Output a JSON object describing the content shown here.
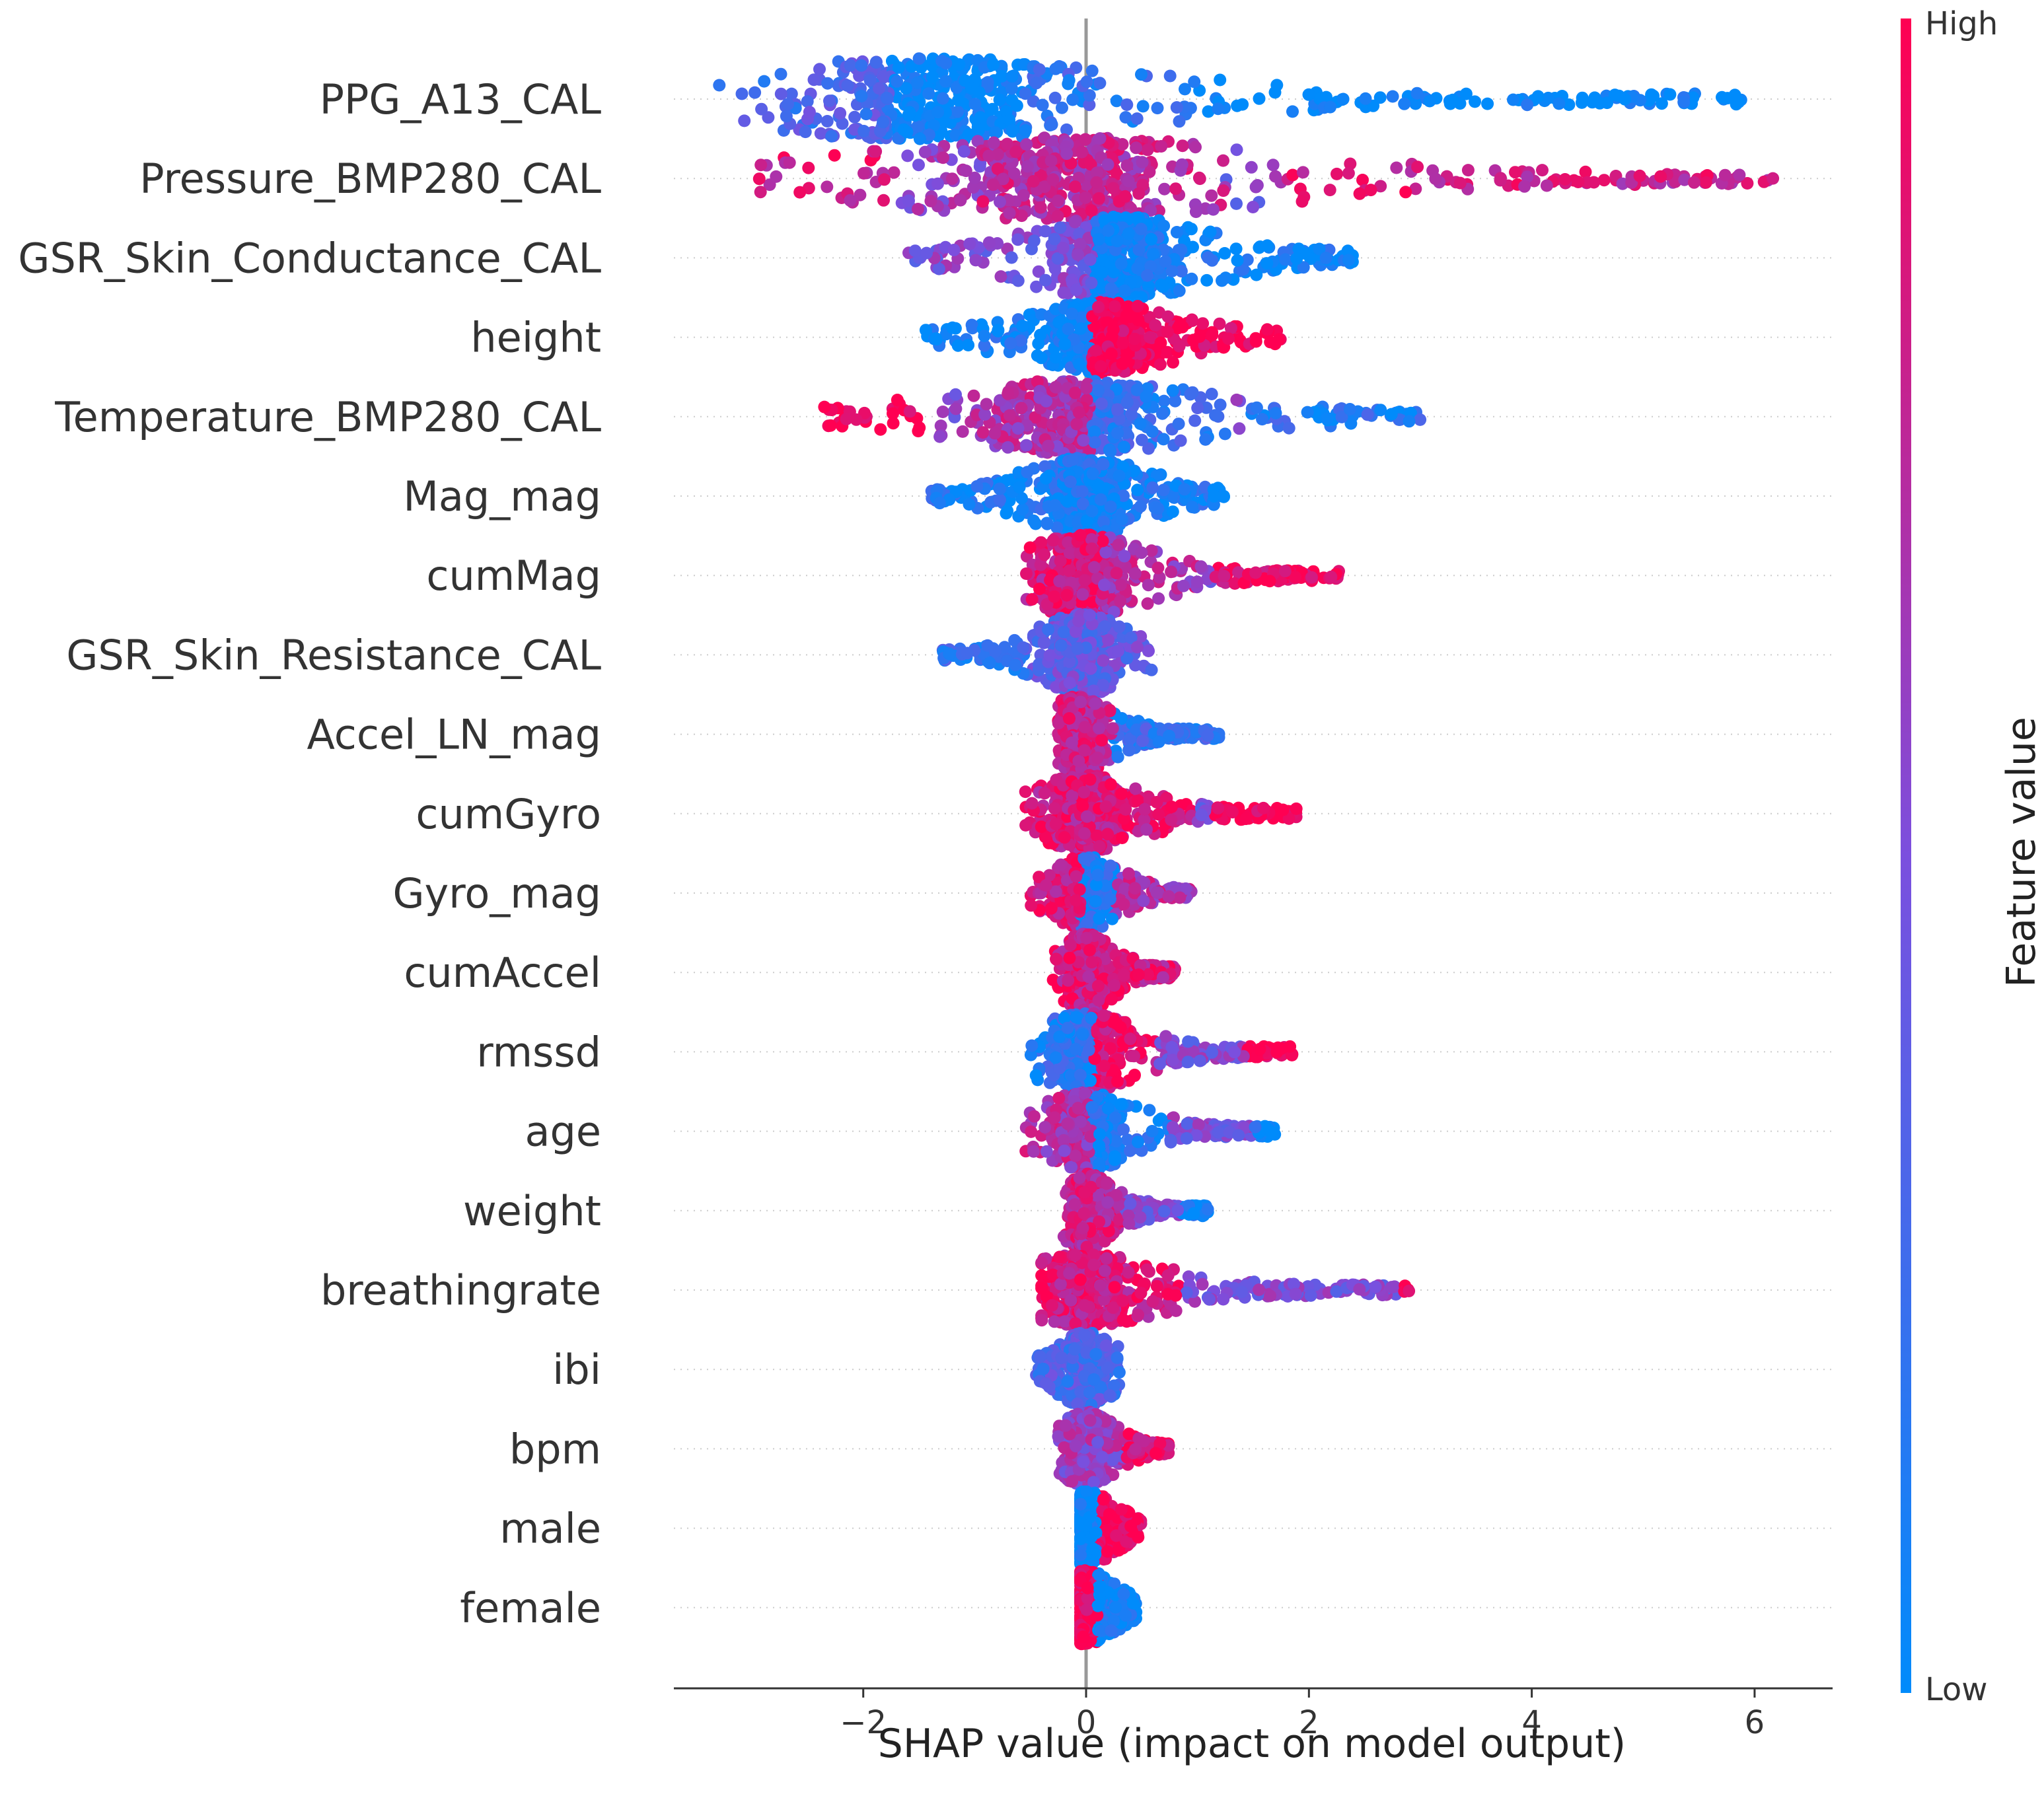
{
  "chart_data": {
    "type": "scatter",
    "subtype": "shap-beeswarm",
    "xlabel": "SHAP value (impact on model output)",
    "xlim": [
      -3.7,
      6.7
    ],
    "xticks": [
      -2,
      0,
      2,
      4,
      6
    ],
    "xtick_labels": [
      "−2",
      "0",
      "2",
      "4",
      "6"
    ],
    "colorbar": {
      "label": "Feature value",
      "high": "High",
      "low": "Low",
      "color_low": "#008bfb",
      "color_mid": "#7b4fde",
      "color_high": "#ff0052"
    },
    "grid": "dotted horizontal row lines",
    "features": [
      {
        "name": "PPG_A13_CAL",
        "min": -3.3,
        "max": 5.9,
        "center": -1.4,
        "max_height": 0.45,
        "segments": [
          [
            -3.3,
            -1.8,
            0.3
          ],
          [
            -1.8,
            -0.6,
            0.0
          ],
          [
            -0.6,
            0.9,
            0.2
          ],
          [
            0.9,
            3.5,
            0.0
          ],
          [
            3.5,
            5.9,
            0.0
          ]
        ]
      },
      {
        "name": "Pressure_BMP280_CAL",
        "min": -3.0,
        "max": 6.2,
        "center": -0.2,
        "max_height": 0.45,
        "segments": [
          [
            -3.0,
            -1.8,
            0.85
          ],
          [
            -1.8,
            -1.0,
            0.6
          ],
          [
            -1.0,
            1.2,
            0.75
          ],
          [
            1.8,
            3.0,
            0.85
          ],
          [
            3.0,
            6.2,
            0.8
          ]
        ]
      },
      {
        "name": "GSR_Skin_Conductance_CAL",
        "min": -1.6,
        "max": 2.4,
        "center": 0.3,
        "max_height": 0.45,
        "segments": [
          [
            -1.6,
            0.0,
            0.5
          ],
          [
            0.0,
            2.4,
            0.05
          ]
        ]
      },
      {
        "name": "height",
        "min": -1.5,
        "max": 1.75,
        "center": 0.15,
        "max_height": 0.38,
        "segments": [
          [
            -1.5,
            0.0,
            0.05
          ],
          [
            0.0,
            1.75,
            1.0
          ]
        ]
      },
      {
        "name": "Temperature_BMP280_CAL",
        "min": -2.4,
        "max": 3.0,
        "center": -0.1,
        "max_height": 0.4,
        "segments": [
          [
            -2.4,
            -1.5,
            1.0
          ],
          [
            -1.1,
            0.0,
            0.7
          ],
          [
            0.0,
            1.3,
            0.2
          ],
          [
            1.5,
            3.0,
            0.15
          ]
        ]
      },
      {
        "name": "Mag_mag",
        "min": -1.4,
        "max": 1.25,
        "center": 0.0,
        "max_height": 0.42,
        "segments": [
          [
            -1.4,
            -1.1,
            0.1
          ],
          [
            -1.1,
            1.25,
            0.08
          ]
        ]
      },
      {
        "name": "cumMag",
        "min": -0.55,
        "max": 2.3,
        "center": 0.0,
        "max_height": 0.45,
        "segments": [
          [
            -0.55,
            0.1,
            0.85
          ],
          [
            0.1,
            1.0,
            0.7
          ],
          [
            1.2,
            2.3,
            0.95
          ]
        ]
      },
      {
        "name": "GSR_Skin_Resistance_CAL",
        "min": -1.3,
        "max": 0.6,
        "center": -0.05,
        "max_height": 0.45,
        "segments": [
          [
            -1.3,
            -0.6,
            0.2
          ],
          [
            -0.6,
            0.6,
            0.4
          ]
        ]
      },
      {
        "name": "Accel_LN_mag",
        "min": -0.25,
        "max": 1.2,
        "center": -0.05,
        "max_height": 0.42,
        "segments": [
          [
            -0.25,
            0.2,
            0.8
          ],
          [
            0.2,
            1.2,
            0.2
          ]
        ]
      },
      {
        "name": "cumGyro",
        "min": -0.6,
        "max": 1.9,
        "center": 0.0,
        "max_height": 0.42,
        "segments": [
          [
            -0.6,
            0.9,
            0.85
          ],
          [
            1.2,
            1.9,
            1.0
          ]
        ]
      },
      {
        "name": "Gyro_mag",
        "min": -0.5,
        "max": 0.95,
        "center": 0.0,
        "max_height": 0.4,
        "segments": [
          [
            -0.5,
            -0.1,
            0.85
          ],
          [
            -0.1,
            0.2,
            0.1
          ],
          [
            0.2,
            0.95,
            0.7
          ]
        ]
      },
      {
        "name": "cumAccel",
        "min": -0.3,
        "max": 0.8,
        "center": 0.0,
        "max_height": 0.42,
        "segments": [
          [
            -0.3,
            0.8,
            0.85
          ]
        ]
      },
      {
        "name": "rmssd",
        "min": -0.5,
        "max": 1.85,
        "center": 0.0,
        "max_height": 0.42,
        "segments": [
          [
            -0.5,
            0.0,
            0.15
          ],
          [
            0.0,
            0.6,
            0.9
          ],
          [
            1.5,
            1.85,
            1.0
          ]
        ]
      },
      {
        "name": "age",
        "min": -0.55,
        "max": 1.7,
        "center": 0.0,
        "max_height": 0.42,
        "segments": [
          [
            -0.55,
            0.0,
            0.7
          ],
          [
            0.0,
            0.7,
            0.1
          ],
          [
            1.55,
            1.7,
            0.05
          ]
        ]
      },
      {
        "name": "weight",
        "min": -0.2,
        "max": 1.1,
        "center": 0.0,
        "max_height": 0.4,
        "segments": [
          [
            -0.2,
            0.3,
            0.8
          ],
          [
            0.9,
            1.1,
            0.05
          ]
        ]
      },
      {
        "name": "breathingrate",
        "min": -0.4,
        "max": 2.9,
        "center": 0.0,
        "max_height": 0.38,
        "segments": [
          [
            -0.4,
            0.8,
            0.85
          ],
          [
            2.9,
            2.9,
            1.0
          ]
        ]
      },
      {
        "name": "ibi",
        "min": -0.45,
        "max": 0.3,
        "center": 0.0,
        "max_height": 0.4,
        "segments": [
          [
            -0.45,
            0.3,
            0.3
          ]
        ]
      },
      {
        "name": "bpm",
        "min": -0.25,
        "max": 0.75,
        "center": 0.0,
        "max_height": 0.4,
        "segments": [
          [
            -0.25,
            0.3,
            0.6
          ],
          [
            0.4,
            0.75,
            0.9
          ]
        ]
      },
      {
        "name": "male",
        "min": -0.05,
        "max": 0.5,
        "center": 0.0,
        "max_height": 0.4,
        "segments": [
          [
            -0.05,
            0.05,
            0.0
          ],
          [
            0.1,
            0.5,
            1.0
          ]
        ]
      },
      {
        "name": "female",
        "min": -0.05,
        "max": 0.45,
        "center": 0.0,
        "max_height": 0.4,
        "segments": [
          [
            -0.05,
            0.05,
            1.0
          ],
          [
            0.1,
            0.45,
            0.05
          ]
        ]
      }
    ]
  }
}
